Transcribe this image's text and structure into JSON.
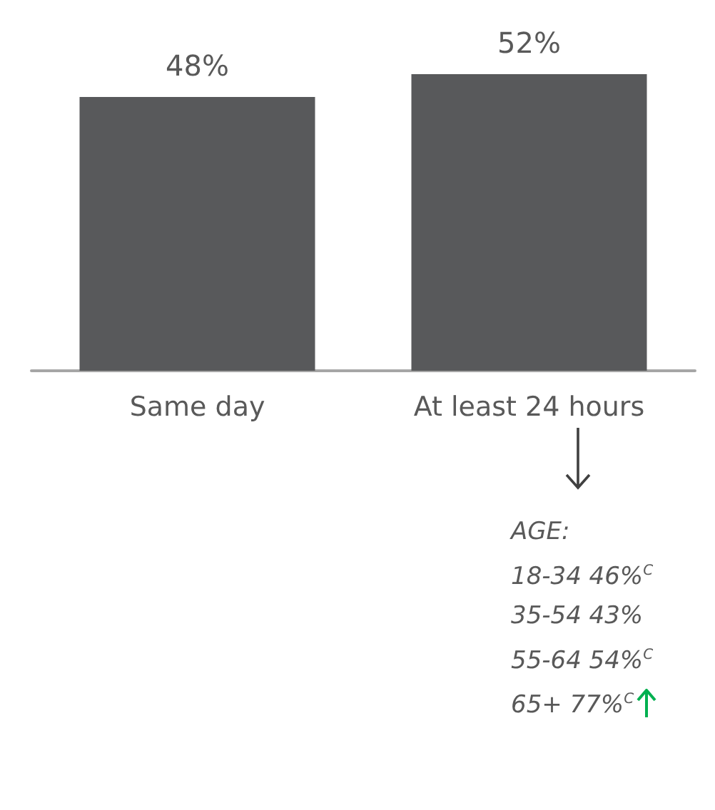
{
  "chart_data": {
    "type": "bar",
    "categories": [
      "Same day",
      "At least 24 hours"
    ],
    "values": [
      48,
      52
    ],
    "color": "#58595b",
    "value_labels": [
      "48%",
      "52%"
    ],
    "annotations": [
      "AGE:",
      "18-34 46%$^{C}$",
      "35-54 43%",
      "55-64 54%$^{C}$",
      "65+ 77%$^{C}$"
    ]
  }
}
